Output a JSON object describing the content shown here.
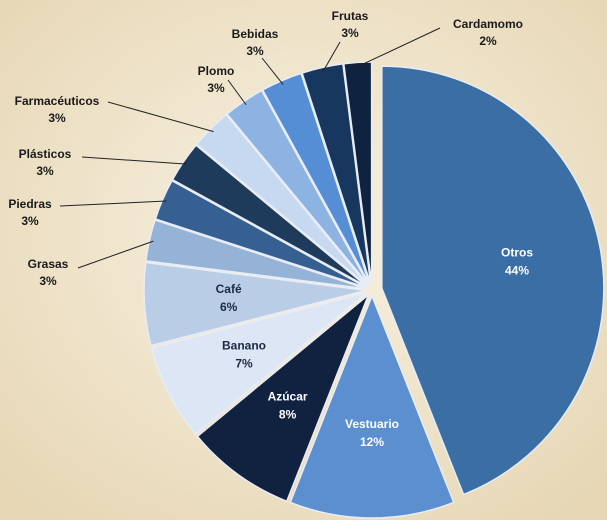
{
  "chart_data": {
    "type": "pie",
    "categories": [
      "Otros",
      "Vestuario",
      "Azúcar",
      "Banano",
      "Café",
      "Grasas",
      "Piedras",
      "Plásticos",
      "Farmacéuticos",
      "Plomo",
      "Bebidas",
      "Frutas",
      "Cardamomo"
    ],
    "values": [
      44,
      12,
      8,
      7,
      6,
      3,
      3,
      3,
      3,
      3,
      3,
      3,
      2
    ],
    "value_labels": [
      "44%",
      "12%",
      "8%",
      "7%",
      "6%",
      "3%",
      "3%",
      "3%",
      "3%",
      "3%",
      "3%",
      "3%",
      "2%"
    ],
    "colors": [
      "#3a6ea5",
      "#5b8fcf",
      "#10223f",
      "#dce6f4",
      "#b9cde6",
      "#95b3d7",
      "#376092",
      "#1f3b5c",
      "#c6d9f1",
      "#8db3e2",
      "#558ed5",
      "#17375e",
      "#0f2240"
    ]
  }
}
